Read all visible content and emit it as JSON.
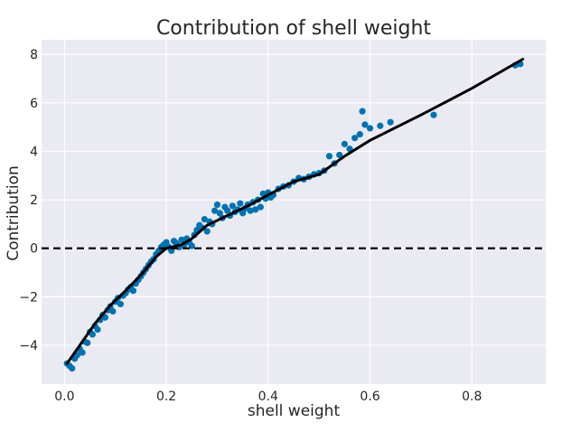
{
  "chart_data": {
    "type": "scatter",
    "title": "Contribution of shell weight",
    "xlabel": "shell weight",
    "ylabel": "Contribution",
    "xlim": [
      -0.045,
      0.945
    ],
    "ylim": [
      -5.6,
      8.6
    ],
    "xticks": [
      0.0,
      0.2,
      0.4,
      0.6,
      0.8
    ],
    "xtick_labels": [
      "0.0",
      "0.2",
      "0.4",
      "0.6",
      "0.8"
    ],
    "yticks": [
      -4,
      -2,
      0,
      2,
      4,
      6,
      8
    ],
    "ytick_labels": [
      "−4",
      "−2",
      "0",
      "2",
      "4",
      "6",
      "8"
    ],
    "grid": true,
    "background": "#eaeaf2",
    "reference_line": {
      "y": 0,
      "style": "dashed",
      "color": "#000000"
    },
    "series": [
      {
        "name": "contributions",
        "kind": "scatter",
        "color": "#0072b2",
        "points": [
          [
            0.005,
            -4.75
          ],
          [
            0.01,
            -4.85
          ],
          [
            0.015,
            -4.95
          ],
          [
            0.02,
            -4.55
          ],
          [
            0.025,
            -4.4
          ],
          [
            0.03,
            -4.15
          ],
          [
            0.035,
            -4.3
          ],
          [
            0.04,
            -3.85
          ],
          [
            0.045,
            -3.9
          ],
          [
            0.05,
            -3.45
          ],
          [
            0.055,
            -3.55
          ],
          [
            0.06,
            -3.2
          ],
          [
            0.065,
            -3.35
          ],
          [
            0.07,
            -2.95
          ],
          [
            0.075,
            -2.75
          ],
          [
            0.08,
            -2.85
          ],
          [
            0.085,
            -2.55
          ],
          [
            0.09,
            -2.4
          ],
          [
            0.095,
            -2.6
          ],
          [
            0.1,
            -2.2
          ],
          [
            0.105,
            -2.05
          ],
          [
            0.11,
            -2.3
          ],
          [
            0.115,
            -1.95
          ],
          [
            0.12,
            -1.85
          ],
          [
            0.125,
            -1.7
          ],
          [
            0.13,
            -1.6
          ],
          [
            0.135,
            -1.75
          ],
          [
            0.14,
            -1.45
          ],
          [
            0.145,
            -1.3
          ],
          [
            0.15,
            -1.15
          ],
          [
            0.155,
            -1.0
          ],
          [
            0.16,
            -0.85
          ],
          [
            0.165,
            -0.7
          ],
          [
            0.17,
            -0.55
          ],
          [
            0.175,
            -0.45
          ],
          [
            0.18,
            -0.25
          ],
          [
            0.185,
            -0.1
          ],
          [
            0.19,
            0.05
          ],
          [
            0.195,
            0.15
          ],
          [
            0.2,
            0.25
          ],
          [
            0.205,
            0.05
          ],
          [
            0.21,
            -0.1
          ],
          [
            0.215,
            0.3
          ],
          [
            0.22,
            0.2
          ],
          [
            0.225,
            0.05
          ],
          [
            0.23,
            0.35
          ],
          [
            0.235,
            0.15
          ],
          [
            0.24,
            0.4
          ],
          [
            0.245,
            0.25
          ],
          [
            0.25,
            0.1
          ],
          [
            0.255,
            0.55
          ],
          [
            0.26,
            0.75
          ],
          [
            0.265,
            0.95
          ],
          [
            0.27,
            0.85
          ],
          [
            0.275,
            1.2
          ],
          [
            0.28,
            0.7
          ],
          [
            0.285,
            1.1
          ],
          [
            0.29,
            1.0
          ],
          [
            0.295,
            1.55
          ],
          [
            0.3,
            1.8
          ],
          [
            0.305,
            1.45
          ],
          [
            0.31,
            1.25
          ],
          [
            0.315,
            1.7
          ],
          [
            0.32,
            1.55
          ],
          [
            0.325,
            1.35
          ],
          [
            0.33,
            1.75
          ],
          [
            0.335,
            1.5
          ],
          [
            0.34,
            1.6
          ],
          [
            0.345,
            1.85
          ],
          [
            0.35,
            1.45
          ],
          [
            0.355,
            1.65
          ],
          [
            0.36,
            1.8
          ],
          [
            0.365,
            1.55
          ],
          [
            0.37,
            1.9
          ],
          [
            0.375,
            1.6
          ],
          [
            0.38,
            2.0
          ],
          [
            0.385,
            1.7
          ],
          [
            0.39,
            2.25
          ],
          [
            0.395,
            2.05
          ],
          [
            0.4,
            2.3
          ],
          [
            0.405,
            2.1
          ],
          [
            0.41,
            2.2
          ],
          [
            0.42,
            2.45
          ],
          [
            0.43,
            2.55
          ],
          [
            0.44,
            2.6
          ],
          [
            0.45,
            2.75
          ],
          [
            0.46,
            2.9
          ],
          [
            0.47,
            2.85
          ],
          [
            0.48,
            2.95
          ],
          [
            0.49,
            3.05
          ],
          [
            0.5,
            3.1
          ],
          [
            0.51,
            3.2
          ],
          [
            0.52,
            3.8
          ],
          [
            0.53,
            3.5
          ],
          [
            0.54,
            3.85
          ],
          [
            0.55,
            4.3
          ],
          [
            0.56,
            4.1
          ],
          [
            0.57,
            4.55
          ],
          [
            0.58,
            4.7
          ],
          [
            0.585,
            5.65
          ],
          [
            0.59,
            5.1
          ],
          [
            0.6,
            4.95
          ],
          [
            0.62,
            5.05
          ],
          [
            0.64,
            5.2
          ],
          [
            0.725,
            5.5
          ],
          [
            0.885,
            7.55
          ],
          [
            0.895,
            7.6
          ]
        ]
      },
      {
        "name": "trend",
        "kind": "line",
        "color": "#000000",
        "points": [
          [
            0.005,
            -4.75
          ],
          [
            0.03,
            -4.0
          ],
          [
            0.06,
            -3.1
          ],
          [
            0.09,
            -2.35
          ],
          [
            0.12,
            -1.75
          ],
          [
            0.15,
            -1.1
          ],
          [
            0.18,
            -0.35
          ],
          [
            0.2,
            0.0
          ],
          [
            0.23,
            0.15
          ],
          [
            0.25,
            0.4
          ],
          [
            0.28,
            0.95
          ],
          [
            0.32,
            1.35
          ],
          [
            0.36,
            1.75
          ],
          [
            0.4,
            2.2
          ],
          [
            0.45,
            2.75
          ],
          [
            0.5,
            3.05
          ],
          [
            0.55,
            3.8
          ],
          [
            0.6,
            4.45
          ],
          [
            0.7,
            5.5
          ],
          [
            0.8,
            6.6
          ],
          [
            0.9,
            7.8
          ]
        ]
      }
    ]
  }
}
